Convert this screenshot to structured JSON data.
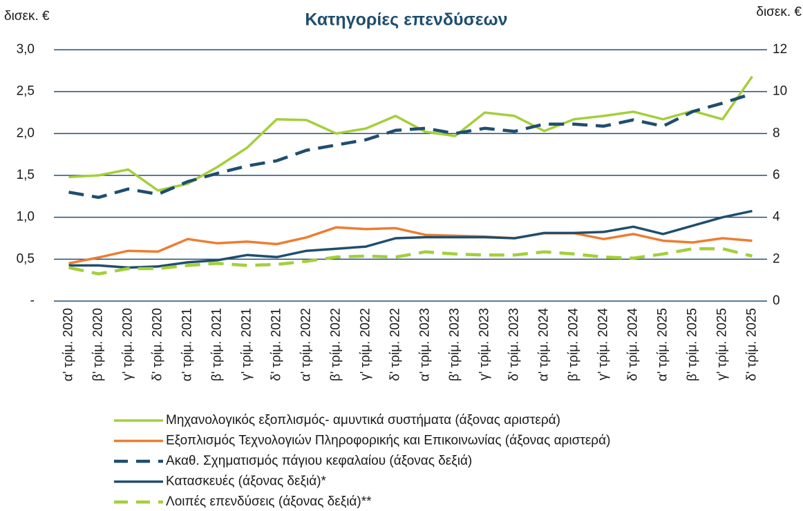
{
  "chart_data": {
    "type": "line",
    "title": "Κατηγορίες επενδύσεων",
    "y_label": "δισεκ. €",
    "y2_label": "δισεκ. €",
    "categories": [
      "α' τρίμ. 2020",
      "β' τρίμ. 2020",
      "γ' τρίμ. 2020",
      "δ' τρίμ. 2020",
      "α' τρίμ. 2021",
      "β' τρίμ. 2021",
      "γ' τρίμ. 2021",
      "δ' τρίμ. 2021",
      "α' τρίμ. 2022",
      "β' τρίμ. 2022",
      "γ' τρίμ. 2022",
      "δ' τρίμ. 2022",
      "α' τρίμ. 2023",
      "β' τρίμ. 2023",
      "γ' τρίμ. 2023",
      "δ' τρίμ. 2023",
      "α' τρίμ. 2024",
      "β' τρίμ. 2024",
      "γ' τρίμ. 2024",
      "δ' τρίμ. 2024",
      "α' τρίμ. 2025",
      "β' τρίμ. 2025",
      "γ' τρίμ. 2025",
      "δ' τρίμ. 2025"
    ],
    "ylim": [
      0,
      3
    ],
    "yticks": [
      {
        "value": 0,
        "label": "-"
      },
      {
        "value": 0.5,
        "label": "0,5"
      },
      {
        "value": 1,
        "label": "1,0"
      },
      {
        "value": 1.5,
        "label": "1,5"
      },
      {
        "value": 2,
        "label": "2,0"
      },
      {
        "value": 2.5,
        "label": "2,5"
      },
      {
        "value": 3,
        "label": "3,0"
      }
    ],
    "y2lim": [
      0,
      12
    ],
    "y2ticks": [
      0,
      2,
      4,
      6,
      8,
      10,
      12
    ],
    "grid": true,
    "series": [
      {
        "name": "Μηχανολογικός εξοπλισμός- αμυντικά συστήματα (άξονας αριστερά)",
        "color": "#a4cf3a",
        "dashed": false,
        "values": [
          1.48,
          1.5,
          1.57,
          1.32,
          1.4,
          1.6,
          1.83,
          2.17,
          2.16,
          2.0,
          2.06,
          2.21,
          2.02,
          1.97,
          2.25,
          2.21,
          2.03,
          2.17,
          2.21,
          2.26,
          2.17,
          2.27,
          2.17,
          2.68
        ]
      },
      {
        "name": "Εξοπλισμός Τεχνολογιών Πληροφορικής και Επικοινωνίας (άξονας αριστερά)",
        "color": "#ed7d31",
        "dashed": false,
        "values": [
          0.45,
          0.52,
          0.6,
          0.59,
          0.74,
          0.69,
          0.71,
          0.68,
          0.76,
          0.88,
          0.86,
          0.87,
          0.79,
          0.78,
          0.77,
          0.75,
          0.81,
          0.81,
          0.74,
          0.8,
          0.72,
          0.7,
          0.75,
          0.72
        ]
      },
      {
        "name": "Ακαθ. Σχηματισμός πάγιου κεφαλαίου (άξονας δεξιά)",
        "color": "#1f4e6e",
        "dashed": true,
        "axis": "y2",
        "values": [
          5.2,
          4.95,
          5.35,
          5.1,
          5.7,
          6.1,
          6.45,
          6.7,
          7.2,
          7.45,
          7.7,
          8.15,
          8.25,
          8.0,
          8.25,
          8.1,
          8.45,
          8.45,
          8.35,
          8.65,
          8.35,
          9.05,
          9.45,
          9.9
        ]
      },
      {
        "name": "Κατασκευές (άξονας δεξιά)*",
        "color": "#1f4e6e",
        "dashed": false,
        "axis": "y2",
        "values": [
          1.7,
          1.7,
          1.6,
          1.65,
          1.85,
          1.95,
          2.2,
          2.1,
          2.4,
          2.5,
          2.6,
          3.0,
          3.05,
          3.05,
          3.05,
          3.0,
          3.25,
          3.25,
          3.3,
          3.55,
          3.2,
          3.6,
          4.0,
          4.3
        ]
      },
      {
        "name": "Λοιπές επενδύσεις (άξονας δεξιά)**",
        "color": "#a4cf3a",
        "dashed": true,
        "axis": "y2",
        "values": [
          1.6,
          1.3,
          1.55,
          1.55,
          1.7,
          1.8,
          1.7,
          1.75,
          1.9,
          2.1,
          2.15,
          2.1,
          2.35,
          2.25,
          2.2,
          2.2,
          2.35,
          2.25,
          2.1,
          2.05,
          2.25,
          2.5,
          2.5,
          2.15
        ]
      }
    ]
  }
}
